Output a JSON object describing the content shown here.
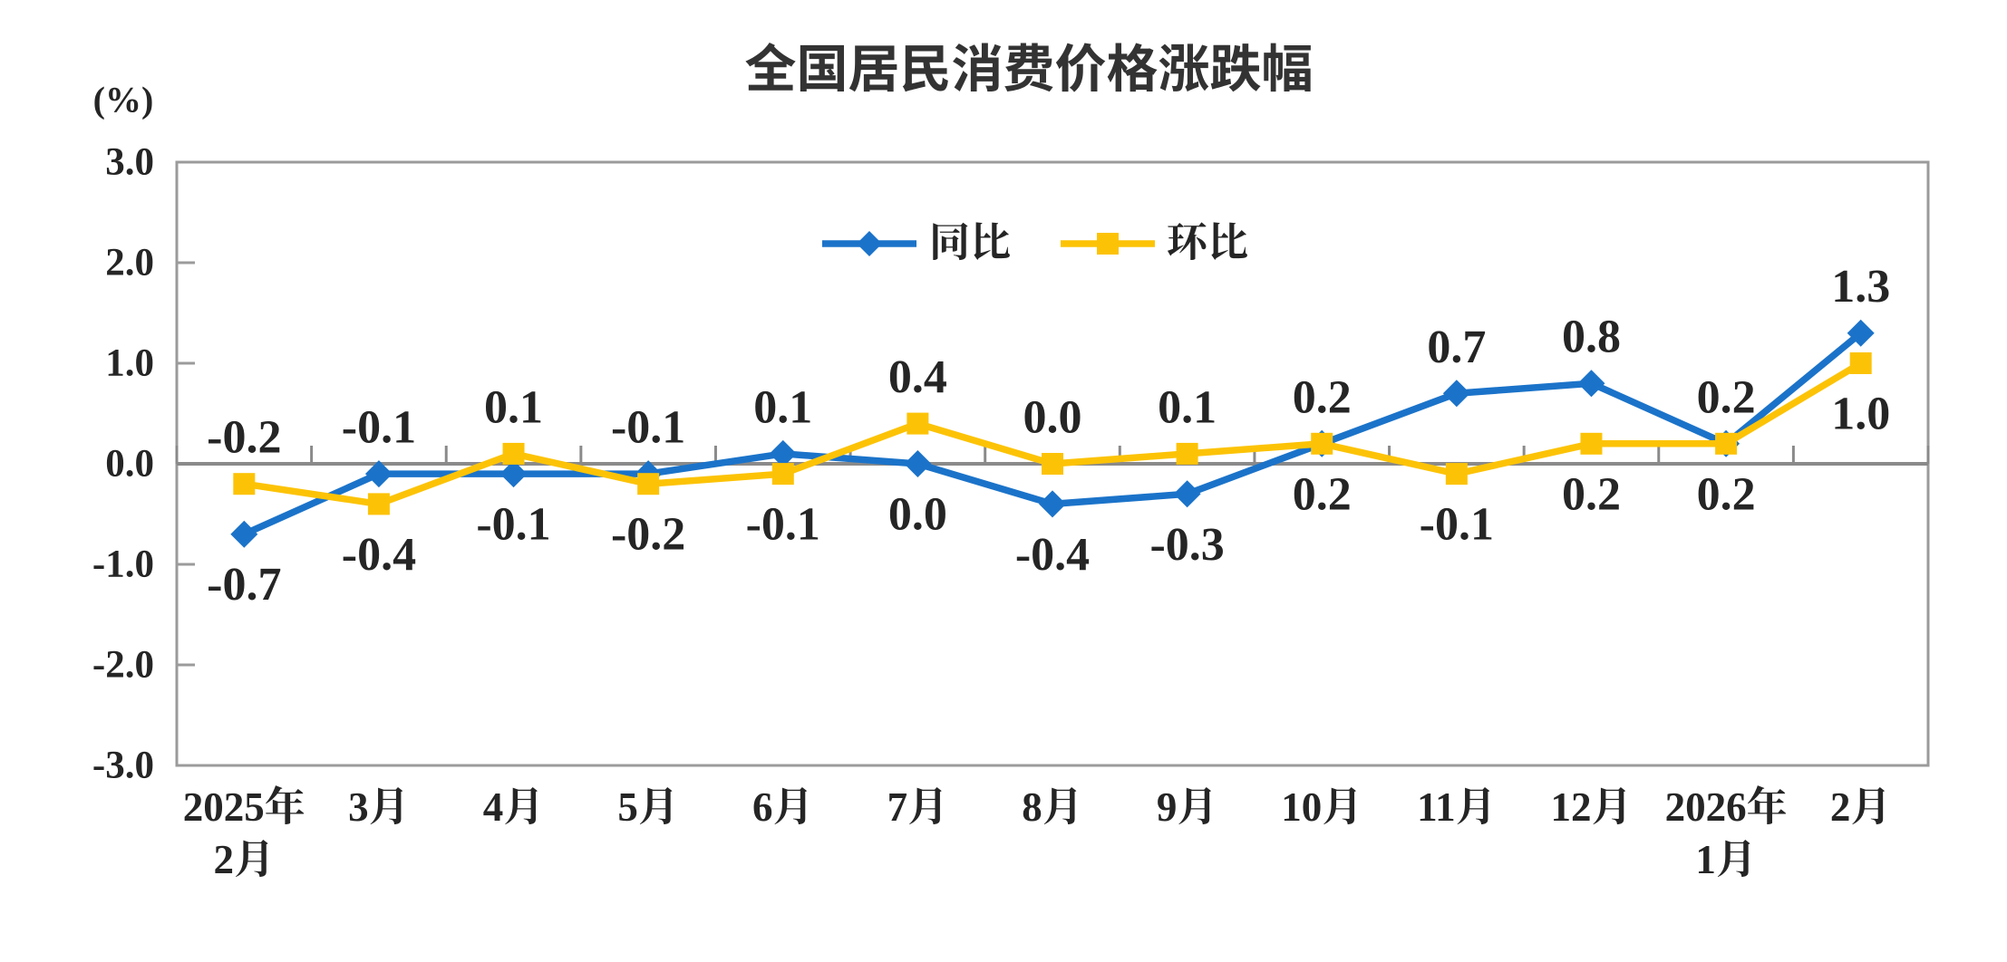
{
  "page": {
    "background": "#ffffff"
  },
  "chart_data": {
    "type": "line",
    "title": "全国居民消费价格涨跌幅",
    "unit_label": "(%)",
    "categories": [
      [
        "2025年",
        "2月"
      ],
      [
        "3月"
      ],
      [
        "4月"
      ],
      [
        "5月"
      ],
      [
        "6月"
      ],
      [
        "7月"
      ],
      [
        "8月"
      ],
      [
        "9月"
      ],
      [
        "10月"
      ],
      [
        "11月"
      ],
      [
        "12月"
      ],
      [
        "2026年",
        "1月"
      ],
      [
        "2月"
      ]
    ],
    "series": [
      {
        "id": "yoy",
        "name": "同比",
        "color": "#1b73c9",
        "marker": "diamond",
        "values": [
          -0.7,
          -0.1,
          -0.1,
          -0.1,
          0.1,
          0.0,
          -0.4,
          -0.3,
          0.2,
          0.7,
          0.8,
          0.2,
          1.3
        ],
        "labels": [
          "-0.7",
          "-0.1",
          "-0.1",
          "-0.1",
          "0.1",
          "0.0",
          "-0.4",
          "-0.3",
          "0.2",
          "0.7",
          "0.8",
          "0.2",
          "1.3"
        ],
        "label_side": [
          "below",
          "above",
          "below",
          "above",
          "above",
          "below",
          "below",
          "below",
          "above",
          "above",
          "above",
          "above",
          "above"
        ]
      },
      {
        "id": "mom",
        "name": "环比",
        "color": "#fcc306",
        "marker": "square",
        "values": [
          -0.2,
          -0.4,
          0.1,
          -0.2,
          -0.1,
          0.4,
          0.0,
          0.1,
          0.2,
          -0.1,
          0.2,
          0.2,
          1.0
        ],
        "labels": [
          "-0.2",
          "-0.4",
          "0.1",
          "-0.2",
          "-0.1",
          "0.4",
          "0.0",
          "0.1",
          "0.2",
          "-0.1",
          "0.2",
          "0.2",
          "1.0"
        ],
        "label_side": [
          "above",
          "below",
          "above",
          "below",
          "below",
          "above",
          "above",
          "above",
          "below",
          "below",
          "below",
          "below",
          "below"
        ]
      }
    ],
    "y_axis": {
      "min": -3.0,
      "max": 3.0,
      "step": 1.0,
      "tick_labels": [
        "3.0",
        "2.0",
        "1.0",
        "0.0",
        "-1.0",
        "-2.0",
        "-3.0"
      ]
    },
    "grid": false,
    "legend_position": "inside-top-center",
    "colors": {
      "label_text": "#252525",
      "title_text": "#333333",
      "axis_line": "#9b9b9b",
      "zero_line": "#8a8a8a"
    }
  }
}
